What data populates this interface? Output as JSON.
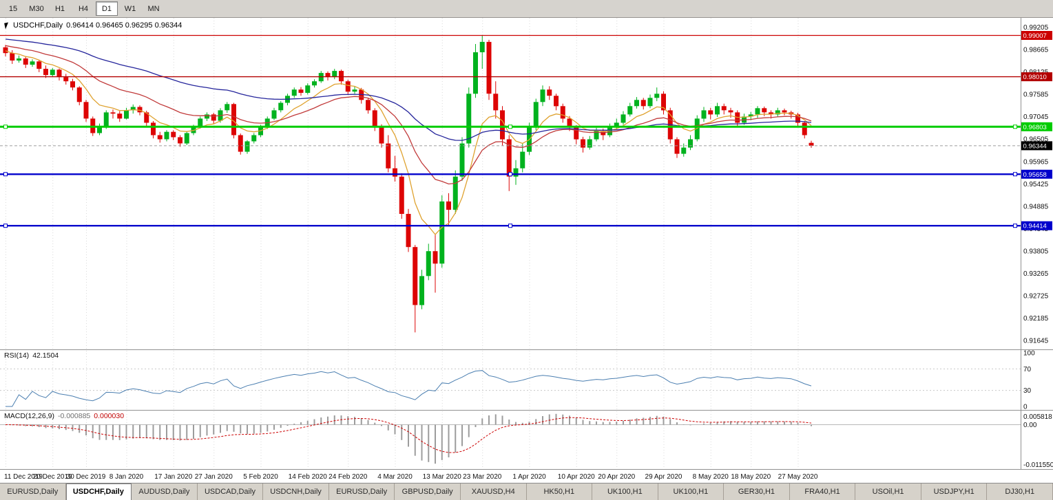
{
  "toolbar": {
    "periods": [
      {
        "label": "15",
        "active": false
      },
      {
        "label": "M30",
        "active": false
      },
      {
        "label": "H1",
        "active": false
      },
      {
        "label": "H4",
        "active": false
      },
      {
        "label": "D1",
        "active": true
      },
      {
        "label": "W1",
        "active": false
      },
      {
        "label": "MN",
        "active": false
      }
    ]
  },
  "chart": {
    "symbol_period": "USDCHF,Daily",
    "ohlc_values": "0.96414 0.96465 0.96295 0.96344"
  },
  "chart_data": {
    "type": "candlestick",
    "symbol": "USDCHF",
    "timeframe": "Daily",
    "y_range": [
      0.9143,
      0.9943
    ],
    "y_axis_labels": [
      "0.99205",
      "0.98665",
      "0.98125",
      "0.97585",
      "0.97045",
      "0.96505",
      "0.95965",
      "0.95425",
      "0.94885",
      "0.94345",
      "0.93805",
      "0.93265",
      "0.92725",
      "0.92185",
      "0.91645"
    ],
    "x_ticks": [
      {
        "i": 0,
        "label": "11 Dec 2019"
      },
      {
        "i": 7,
        "label": "20 Dec 2019"
      },
      {
        "i": 12,
        "label": "30 Dec 2019"
      },
      {
        "i": 18,
        "label": "8 Jan 2020"
      },
      {
        "i": 25,
        "label": "17 Jan 2020"
      },
      {
        "i": 31,
        "label": "27 Jan 2020"
      },
      {
        "i": 38,
        "label": "5 Feb 2020"
      },
      {
        "i": 45,
        "label": "14 Feb 2020"
      },
      {
        "i": 51,
        "label": "24 Feb 2020"
      },
      {
        "i": 58,
        "label": "4 Mar 2020"
      },
      {
        "i": 65,
        "label": "13 Mar 2020"
      },
      {
        "i": 71,
        "label": "23 Mar 2020"
      },
      {
        "i": 78,
        "label": "1 Apr 2020"
      },
      {
        "i": 85,
        "label": "10 Apr 2020"
      },
      {
        "i": 91,
        "label": "20 Apr 2020"
      },
      {
        "i": 98,
        "label": "29 Apr 2020"
      },
      {
        "i": 105,
        "label": "8 May 2020"
      },
      {
        "i": 111,
        "label": "18 May 2020"
      },
      {
        "i": 118,
        "label": "27 May 2020"
      }
    ],
    "hlines": [
      {
        "price": 0.99007,
        "label": "0.99007",
        "color": "#CC0000",
        "width": 1.2,
        "handles": false
      },
      {
        "price": 0.9801,
        "label": "0.98010",
        "color": "#B30000",
        "width": 1.4,
        "handles": false
      },
      {
        "price": 0.96803,
        "label": "0.96803",
        "color": "#00CC00",
        "width": 3,
        "handles": true
      },
      {
        "price": 0.95658,
        "label": "0.95658",
        "color": "#0000CC",
        "width": 2.4,
        "handles": true
      },
      {
        "price": 0.94414,
        "label": "0.94414",
        "color": "#0000CC",
        "width": 2.4,
        "handles": true
      }
    ],
    "current_price": {
      "value": 0.96344,
      "label": "0.96344",
      "color": "#000000"
    },
    "moving_averages": [
      {
        "type": "ema",
        "period": 8,
        "color": "#DFA22F",
        "start": 0.9865
      },
      {
        "type": "ema",
        "period": 21,
        "color": "#C13A3A",
        "start": 0.9878
      },
      {
        "type": "ema",
        "period": 55,
        "color": "#24249B",
        "start": 0.9893
      }
    ],
    "colors": {
      "bull": "#00B21E",
      "bear": "#DD0404",
      "grid": "#D9D9D9",
      "axis_text": "#111111",
      "separator": "#909090",
      "bid_line": "#9C9C9C",
      "macd_histogram": "#9C9C9C",
      "macd_signal": "#CC0000",
      "rsi_line": "#4A7EB0"
    },
    "indicators": {
      "rsi": {
        "name": "RSI(14)",
        "value": "42.1504",
        "period": 14,
        "levels": [
          100,
          70,
          30,
          0
        ],
        "color": "#4A7EB0"
      },
      "macd": {
        "name": "MACD(12,26,9)",
        "value_main": "-0.000885",
        "value_signal": "0.000030",
        "fast": 12,
        "slow": 26,
        "signal": 9,
        "axis_labels": [
          "0.005818",
          "0.00",
          "-0.011550"
        ]
      }
    },
    "ohlc": [
      [
        0.9872,
        0.9878,
        0.985,
        0.9858
      ],
      [
        0.9858,
        0.9865,
        0.9832,
        0.984
      ],
      [
        0.984,
        0.9852,
        0.9835,
        0.9845
      ],
      [
        0.9845,
        0.985,
        0.9822,
        0.983
      ],
      [
        0.983,
        0.9843,
        0.9825,
        0.9838
      ],
      [
        0.9838,
        0.9842,
        0.9812,
        0.982
      ],
      [
        0.982,
        0.9828,
        0.9798,
        0.9805
      ],
      [
        0.9805,
        0.9822,
        0.98,
        0.9818
      ],
      [
        0.9818,
        0.9821,
        0.9792,
        0.98
      ],
      [
        0.98,
        0.9808,
        0.9782,
        0.979
      ],
      [
        0.979,
        0.9796,
        0.9768,
        0.9775
      ],
      [
        0.9775,
        0.9778,
        0.9732,
        0.974
      ],
      [
        0.974,
        0.9745,
        0.9692,
        0.97
      ],
      [
        0.97,
        0.9705,
        0.9658,
        0.9665
      ],
      [
        0.9665,
        0.9688,
        0.966,
        0.968
      ],
      [
        0.968,
        0.972,
        0.9675,
        0.9715
      ],
      [
        0.9715,
        0.9722,
        0.97,
        0.9712
      ],
      [
        0.9712,
        0.9718,
        0.9692,
        0.97
      ],
      [
        0.97,
        0.9726,
        0.9698,
        0.972
      ],
      [
        0.972,
        0.9734,
        0.9712,
        0.9728
      ],
      [
        0.9728,
        0.9732,
        0.9708,
        0.9715
      ],
      [
        0.9715,
        0.9719,
        0.9682,
        0.969
      ],
      [
        0.969,
        0.9694,
        0.9652,
        0.966
      ],
      [
        0.966,
        0.9668,
        0.9642,
        0.965
      ],
      [
        0.965,
        0.9672,
        0.9645,
        0.9668
      ],
      [
        0.9668,
        0.9672,
        0.9648,
        0.9655
      ],
      [
        0.9655,
        0.966,
        0.9632,
        0.964
      ],
      [
        0.964,
        0.967,
        0.9636,
        0.9665
      ],
      [
        0.9665,
        0.9685,
        0.966,
        0.968
      ],
      [
        0.968,
        0.9705,
        0.9676,
        0.97
      ],
      [
        0.97,
        0.9715,
        0.9694,
        0.971
      ],
      [
        0.971,
        0.9714,
        0.9688,
        0.9695
      ],
      [
        0.9695,
        0.9725,
        0.969,
        0.972
      ],
      [
        0.972,
        0.974,
        0.9714,
        0.9735
      ],
      [
        0.9735,
        0.9738,
        0.9652,
        0.966
      ],
      [
        0.966,
        0.9664,
        0.9613,
        0.962
      ],
      [
        0.962,
        0.9648,
        0.9615,
        0.9645
      ],
      [
        0.9645,
        0.9665,
        0.964,
        0.966
      ],
      [
        0.966,
        0.9685,
        0.9655,
        0.968
      ],
      [
        0.968,
        0.9705,
        0.9675,
        0.97
      ],
      [
        0.97,
        0.9726,
        0.9696,
        0.972
      ],
      [
        0.972,
        0.9742,
        0.9715,
        0.9738
      ],
      [
        0.9738,
        0.976,
        0.9732,
        0.9755
      ],
      [
        0.9755,
        0.9775,
        0.975,
        0.977
      ],
      [
        0.977,
        0.9776,
        0.9755,
        0.9762
      ],
      [
        0.9762,
        0.9785,
        0.9758,
        0.978
      ],
      [
        0.978,
        0.9795,
        0.9775,
        0.979
      ],
      [
        0.979,
        0.9815,
        0.9786,
        0.981
      ],
      [
        0.981,
        0.9814,
        0.9792,
        0.98
      ],
      [
        0.98,
        0.982,
        0.9795,
        0.9815
      ],
      [
        0.9815,
        0.9818,
        0.9782,
        0.979
      ],
      [
        0.979,
        0.9794,
        0.9758,
        0.9765
      ],
      [
        0.9765,
        0.9778,
        0.976,
        0.977
      ],
      [
        0.977,
        0.9774,
        0.9736,
        0.9745
      ],
      [
        0.9745,
        0.975,
        0.9712,
        0.972
      ],
      [
        0.972,
        0.9725,
        0.967,
        0.968
      ],
      [
        0.968,
        0.9686,
        0.963,
        0.964
      ],
      [
        0.964,
        0.966,
        0.957,
        0.958
      ],
      [
        0.958,
        0.961,
        0.9548,
        0.956
      ],
      [
        0.956,
        0.9568,
        0.9458,
        0.947
      ],
      [
        0.947,
        0.9482,
        0.9378,
        0.939
      ],
      [
        0.939,
        0.9395,
        0.9184,
        0.925
      ],
      [
        0.925,
        0.9335,
        0.924,
        0.932
      ],
      [
        0.932,
        0.9398,
        0.931,
        0.938
      ],
      [
        0.938,
        0.942,
        0.928,
        0.935
      ],
      [
        0.935,
        0.9515,
        0.934,
        0.95
      ],
      [
        0.95,
        0.952,
        0.944,
        0.948
      ],
      [
        0.948,
        0.9575,
        0.947,
        0.956
      ],
      [
        0.956,
        0.9655,
        0.955,
        0.964
      ],
      [
        0.964,
        0.9775,
        0.963,
        0.976
      ],
      [
        0.976,
        0.988,
        0.975,
        0.986
      ],
      [
        0.986,
        0.9901,
        0.982,
        0.9885
      ],
      [
        0.9885,
        0.989,
        0.9745,
        0.976
      ],
      [
        0.976,
        0.979,
        0.97,
        0.972
      ],
      [
        0.972,
        0.973,
        0.9635,
        0.965
      ],
      [
        0.965,
        0.966,
        0.9525,
        0.956
      ],
      [
        0.956,
        0.96,
        0.954,
        0.958
      ],
      [
        0.958,
        0.964,
        0.957,
        0.962
      ],
      [
        0.962,
        0.969,
        0.9612,
        0.968
      ],
      [
        0.968,
        0.9748,
        0.9672,
        0.974
      ],
      [
        0.974,
        0.978,
        0.973,
        0.977
      ],
      [
        0.977,
        0.9778,
        0.9745,
        0.9755
      ],
      [
        0.9755,
        0.976,
        0.972,
        0.973
      ],
      [
        0.973,
        0.9736,
        0.969,
        0.97
      ],
      [
        0.97,
        0.9706,
        0.967,
        0.968
      ],
      [
        0.968,
        0.9684,
        0.9638,
        0.965
      ],
      [
        0.965,
        0.9656,
        0.9618,
        0.963
      ],
      [
        0.963,
        0.9658,
        0.9625,
        0.965
      ],
      [
        0.965,
        0.9678,
        0.9645,
        0.967
      ],
      [
        0.967,
        0.9676,
        0.9648,
        0.966
      ],
      [
        0.966,
        0.9688,
        0.9655,
        0.968
      ],
      [
        0.968,
        0.97,
        0.9672,
        0.969
      ],
      [
        0.969,
        0.9718,
        0.9685,
        0.971
      ],
      [
        0.971,
        0.9738,
        0.9705,
        0.973
      ],
      [
        0.973,
        0.9752,
        0.9724,
        0.9745
      ],
      [
        0.9745,
        0.975,
        0.9722,
        0.973
      ],
      [
        0.973,
        0.9758,
        0.9725,
        0.975
      ],
      [
        0.975,
        0.9775,
        0.9742,
        0.976
      ],
      [
        0.976,
        0.9766,
        0.971,
        0.972
      ],
      [
        0.972,
        0.9726,
        0.964,
        0.965
      ],
      [
        0.965,
        0.9655,
        0.9605,
        0.9615
      ],
      [
        0.9615,
        0.964,
        0.9608,
        0.963
      ],
      [
        0.963,
        0.966,
        0.9624,
        0.965
      ],
      [
        0.965,
        0.9708,
        0.9645,
        0.97
      ],
      [
        0.97,
        0.9728,
        0.9692,
        0.972
      ],
      [
        0.972,
        0.9726,
        0.9698,
        0.971
      ],
      [
        0.971,
        0.9738,
        0.9704,
        0.973
      ],
      [
        0.973,
        0.9736,
        0.971,
        0.972
      ],
      [
        0.972,
        0.9726,
        0.9702,
        0.9715
      ],
      [
        0.9715,
        0.972,
        0.9682,
        0.969
      ],
      [
        0.969,
        0.9712,
        0.9685,
        0.9705
      ],
      [
        0.9705,
        0.9716,
        0.9696,
        0.971
      ],
      [
        0.971,
        0.973,
        0.9702,
        0.9725
      ],
      [
        0.9725,
        0.9729,
        0.9706,
        0.9715
      ],
      [
        0.9715,
        0.972,
        0.97,
        0.971
      ],
      [
        0.971,
        0.9726,
        0.9704,
        0.972
      ],
      [
        0.972,
        0.9724,
        0.9708,
        0.9715
      ],
      [
        0.9715,
        0.9719,
        0.97,
        0.971
      ],
      [
        0.971,
        0.9714,
        0.9682,
        0.969
      ],
      [
        0.969,
        0.9694,
        0.9652,
        0.966
      ],
      [
        0.96414,
        0.96465,
        0.96295,
        0.96344
      ]
    ]
  },
  "tabs": [
    {
      "label": "EURUSD,Daily",
      "active": false
    },
    {
      "label": "USDCHF,Daily",
      "active": true
    },
    {
      "label": "AUDUSD,Daily",
      "active": false
    },
    {
      "label": "USDCAD,Daily",
      "active": false
    },
    {
      "label": "USDCNH,Daily",
      "active": false
    },
    {
      "label": "EURUSD,Daily",
      "active": false
    },
    {
      "label": "GBPUSD,Daily",
      "active": false
    },
    {
      "label": "XAUUSD,H4",
      "active": false
    },
    {
      "label": "HK50,H1",
      "active": false
    },
    {
      "label": "UK100,H1",
      "active": false
    },
    {
      "label": "UK100,H1",
      "active": false
    },
    {
      "label": "GER30,H1",
      "active": false
    },
    {
      "label": "FRA40,H1",
      "active": false
    },
    {
      "label": "USOil,H1",
      "active": false
    },
    {
      "label": "USDJPY,H1",
      "active": false
    },
    {
      "label": "DJ30,H1",
      "active": false
    }
  ]
}
